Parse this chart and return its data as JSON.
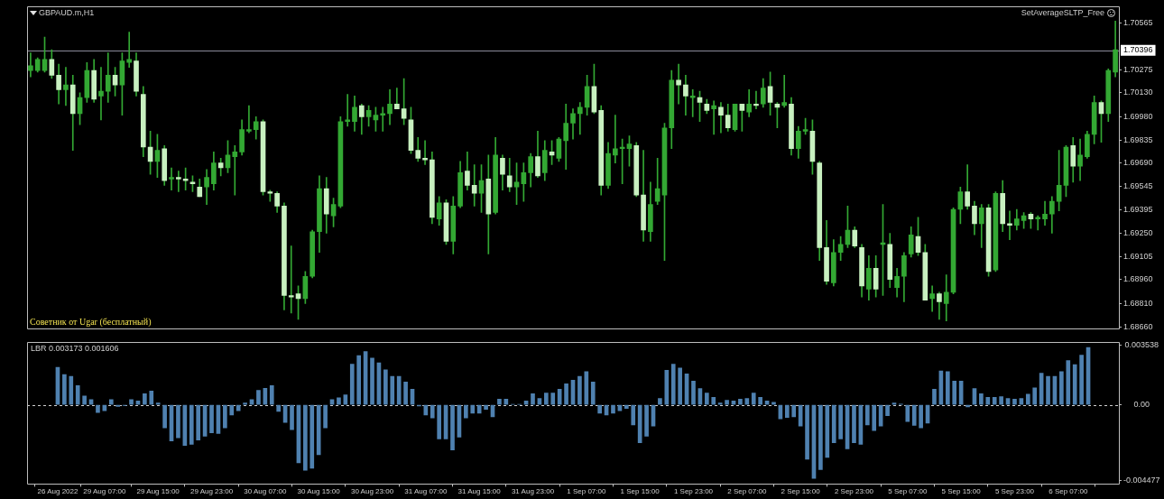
{
  "chart_data": [
    {
      "type": "candlestick",
      "title": "GBPAUD.m,H1",
      "annotations": [
        "Советник от Ugar (бесплатный)",
        "SetAverageSLTP_Free"
      ],
      "categories": [
        null,
        null,
        null,
        null,
        null,
        null,
        null,
        null,
        null,
        null,
        null,
        null,
        null,
        null,
        null,
        null,
        null,
        null,
        null,
        null,
        null,
        null,
        null,
        null,
        null,
        null,
        null,
        null,
        null,
        null,
        null,
        null,
        null,
        null,
        null,
        null,
        null,
        null,
        null,
        null,
        null,
        null,
        null,
        null,
        null,
        null,
        null,
        null,
        null,
        null,
        null,
        null,
        null,
        null,
        null,
        null,
        null,
        null,
        null,
        null,
        null,
        null,
        null,
        null,
        null,
        null,
        null,
        null,
        null,
        null,
        null,
        null,
        null,
        null,
        null,
        null,
        null,
        null,
        null,
        null,
        null,
        null,
        null,
        null,
        null,
        null,
        null,
        null,
        null,
        null,
        null,
        null,
        null,
        null,
        null,
        null,
        null,
        null,
        null,
        null,
        null,
        null,
        null,
        null,
        null,
        null,
        null,
        null,
        null,
        null,
        null,
        null,
        null,
        null,
        null,
        null,
        null,
        null,
        null,
        null,
        null,
        null,
        null,
        null,
        null,
        null,
        null,
        null,
        null,
        null,
        null,
        null,
        null,
        null,
        null,
        null,
        null,
        null,
        null,
        null,
        null,
        null,
        null,
        null,
        null,
        null,
        null,
        null,
        null,
        null,
        null,
        null,
        null,
        null,
        null
      ],
      "color": "#33a833",
      "colors": [
        "#33a833",
        "#33a833",
        "#33a833",
        "#c8f0c0",
        "#c8f0c0",
        "#33a833",
        "#c8f0c0",
        "#33a833",
        "#33a833",
        "#c8f0c0",
        "#33a833",
        "#33a833",
        "#c8f0c0",
        "#33a833",
        "#33a833",
        "#c8f0c0",
        "#c8f0c0",
        "#c8f0c0",
        "#33a833",
        "#c8f0c0",
        "#33a833",
        "#c8f0c0",
        "#c8f0c0",
        "#c8f0c0",
        "#c8f0c0",
        "#33a833",
        "#33a833",
        "#c8f0c0",
        "#33a833",
        "#33a833",
        "#33a833",
        "#33a833",
        "#33a833",
        "#c8f0c0",
        "#c8f0c0",
        "#c8f0c0",
        "#c8f0c0",
        "#c8f0c0",
        "#c8f0c0",
        "#33a833",
        "#33a833",
        "#33a833",
        "#c8f0c0",
        "#33a833",
        "#33a833",
        "#33a833",
        "#33a833",
        "#c8f0c0",
        "#33a833",
        "#33a833",
        "#33a833",
        "#33a833",
        "#c8f0c0",
        "#c8f0c0",
        "#c8f0c0",
        "#c8f0c0",
        "#c8f0c0",
        "#c8f0c0",
        "#33a833",
        "#c8f0c0",
        "#33a833",
        "#33a833",
        "#c8f0c0",
        "#c8f0c0",
        "#33a833",
        "#c8f0c0",
        "#33a833",
        "#c8f0c0",
        "#c8f0c0",
        "#33a833",
        "#33a833",
        "#33a833",
        "#c8f0c0",
        "#33a833",
        "#c8f0c0",
        "#33a833",
        "#33a833",
        "#33a833",
        "#33a833",
        "#33a833",
        "#c8f0c0",
        "#c8f0c0",
        "#33a833",
        "#33a833",
        "#33a833",
        "#33a833",
        "#c8f0c0",
        "#c8f0c0",
        "#33a833",
        "#33a833",
        "#33a833",
        "#33a833",
        "#c8f0c0",
        "#c8f0c0",
        "#33a833",
        "#c8f0c0",
        "#c8f0c0",
        "#33a833",
        "#c8f0c0",
        "#c8f0c0",
        "#33a833",
        "#c8f0c0",
        "#33a833",
        "#c8f0c0",
        "#33a833",
        "#c8f0c0",
        "#c8f0c0",
        "#33a833",
        "#c8f0c0",
        "#33a833",
        "#33a833",
        "#c8f0c0",
        "#c8f0c0",
        "#c8f0c0",
        "#33a833",
        "#33a833",
        "#33a833",
        "#c8f0c0",
        "#c8f0c0",
        "#33a833",
        "#c8f0c0",
        "#33a833",
        "#c8f0c0",
        "#33a833",
        "#33a833",
        "#33a833",
        "#c8f0c0",
        "#c8f0c0",
        "#33a833",
        "#c8f0c0",
        "#33a833",
        "#33a833",
        "#33a833",
        "#c8f0c0",
        "#c8f0c0",
        "#33a833",
        "#c8f0c0",
        "#33a833",
        "#c8f0c0",
        "#c8f0c0",
        "#33a833",
        "#33a833",
        "#c8f0c0",
        "#33a833",
        "#33a833",
        "#33a833",
        "#33a833",
        "#33a833",
        "#c8f0c0",
        "#33a833",
        "#33a833",
        "#33a833",
        "#c8f0c0",
        "#33a833",
        "#33a833"
      ],
      "ohlc": [
        [
          1.7027,
          1.7038,
          1.7023,
          1.703
        ],
        [
          1.7027,
          1.7035,
          1.7026,
          1.7034
        ],
        [
          1.7027,
          1.7048,
          1.7026,
          1.7034
        ],
        [
          1.7034,
          1.704,
          1.7022,
          1.7024
        ],
        [
          1.7024,
          1.7031,
          1.7006,
          1.7015
        ],
        [
          1.7015,
          1.7029,
          1.7005,
          1.7018
        ],
        [
          1.7018,
          1.7024,
          1.6977,
          1.7
        ],
        [
          1.7,
          1.7013,
          1.6993,
          1.701
        ],
        [
          1.701,
          1.7032,
          1.7007,
          1.7027
        ],
        [
          1.7027,
          1.7034,
          1.7007,
          1.7009
        ],
        [
          1.7011,
          1.7029,
          1.6996,
          1.7014
        ],
        [
          1.7014,
          1.7038,
          1.7007,
          1.7024
        ],
        [
          1.7024,
          1.7029,
          1.7011,
          1.7018
        ],
        [
          1.7018,
          1.7038,
          1.6999,
          1.7033
        ],
        [
          1.7032,
          1.7051,
          1.7029,
          1.7034
        ],
        [
          1.7033,
          1.7038,
          1.7011,
          1.7014
        ],
        [
          1.7012,
          1.7017,
          1.6973,
          1.6979
        ],
        [
          1.6979,
          1.6989,
          1.6962,
          1.697
        ],
        [
          1.697,
          1.6987,
          1.696,
          1.6977
        ],
        [
          1.6978,
          1.698,
          1.6955,
          1.6958
        ],
        [
          1.6959,
          1.6966,
          1.6952,
          1.696
        ],
        [
          1.696,
          1.6964,
          1.6951,
          1.6959
        ],
        [
          1.6959,
          1.6966,
          1.6952,
          1.6958
        ],
        [
          1.6957,
          1.6961,
          1.6951,
          1.6956
        ],
        [
          1.6954,
          1.6959,
          1.6948,
          1.6948
        ],
        [
          1.6954,
          1.6965,
          1.6943,
          1.696
        ],
        [
          1.6956,
          1.6976,
          1.6952,
          1.6969
        ],
        [
          1.6969,
          1.6972,
          1.6961,
          1.6966
        ],
        [
          1.6966,
          1.6983,
          1.6963,
          1.6974
        ],
        [
          1.6973,
          1.698,
          1.6949,
          1.6976
        ],
        [
          1.6976,
          1.6996,
          1.6974,
          1.699
        ],
        [
          1.6989,
          1.7005,
          1.6988,
          1.699
        ],
        [
          1.699,
          1.6998,
          1.6984,
          1.6995
        ],
        [
          1.6995,
          1.6996,
          1.6949,
          1.6951
        ],
        [
          1.6951,
          1.6952,
          1.6945,
          1.695
        ],
        [
          1.695,
          1.6951,
          1.6938,
          1.6942
        ],
        [
          1.6942,
          1.6944,
          1.6877,
          1.6886
        ],
        [
          1.6886,
          1.6917,
          1.6875,
          1.6885
        ],
        [
          1.6887,
          1.6892,
          1.6871,
          1.6884
        ],
        [
          1.6884,
          1.6901,
          1.6881,
          1.6898
        ],
        [
          1.6898,
          1.6927,
          1.6897,
          1.6926
        ],
        [
          1.6926,
          1.6961,
          1.6913,
          1.6953
        ],
        [
          1.6953,
          1.696,
          1.6925,
          1.6937
        ],
        [
          1.6936,
          1.6947,
          1.6929,
          1.6943
        ],
        [
          1.6942,
          1.6998,
          1.6941,
          1.6995
        ],
        [
          1.6995,
          1.7012,
          1.6992,
          1.6996
        ],
        [
          1.6995,
          1.7011,
          1.6989,
          1.7004
        ],
        [
          1.7005,
          1.7006,
          1.6987,
          1.6998
        ],
        [
          1.6998,
          1.7005,
          1.6992,
          1.7002
        ],
        [
          1.6996,
          1.7004,
          1.6989,
          1.6999
        ],
        [
          1.6999,
          1.7004,
          1.6989,
          1.7
        ],
        [
          1.7,
          1.7015,
          1.6993,
          1.7006
        ],
        [
          1.7006,
          1.7016,
          1.7003,
          1.7003
        ],
        [
          1.7003,
          1.7022,
          1.6993,
          1.6997
        ],
        [
          1.6996,
          1.7004,
          1.6975,
          1.6977
        ],
        [
          1.6977,
          1.6985,
          1.697,
          1.6972
        ],
        [
          1.6972,
          1.6983,
          1.6968,
          1.6971
        ],
        [
          1.6971,
          1.6976,
          1.6931,
          1.6935
        ],
        [
          1.6934,
          1.6948,
          1.693,
          1.6944
        ],
        [
          1.6944,
          1.6946,
          1.6918,
          1.692
        ],
        [
          1.692,
          1.6948,
          1.6912,
          1.6942
        ],
        [
          1.6942,
          1.697,
          1.6941,
          1.6963
        ],
        [
          1.6964,
          1.6976,
          1.6952,
          1.6955
        ],
        [
          1.6955,
          1.6968,
          1.6942,
          1.695
        ],
        [
          1.695,
          1.6968,
          1.6938,
          1.6958
        ],
        [
          1.6959,
          1.6974,
          1.6912,
          1.6937
        ],
        [
          1.6938,
          1.6985,
          1.6937,
          1.6974
        ],
        [
          1.6972,
          1.6974,
          1.6952,
          1.6962
        ],
        [
          1.6961,
          1.6972,
          1.6951,
          1.6954
        ],
        [
          1.6954,
          1.6969,
          1.6943,
          1.6957
        ],
        [
          1.6956,
          1.6969,
          1.6945,
          1.6963
        ],
        [
          1.6963,
          1.6975,
          1.6954,
          1.6973
        ],
        [
          1.6973,
          1.6989,
          1.696,
          1.6961
        ],
        [
          1.6963,
          1.6983,
          1.6958,
          1.6977
        ],
        [
          1.6976,
          1.6983,
          1.6968,
          1.6974
        ],
        [
          1.6972,
          1.6985,
          1.697,
          1.6984
        ],
        [
          1.6983,
          1.7006,
          1.6965,
          1.6994
        ],
        [
          1.6994,
          1.7003,
          1.6984,
          1.7
        ],
        [
          1.7,
          1.7007,
          1.6987,
          1.7004
        ],
        [
          1.7004,
          1.7024,
          1.6999,
          1.7017
        ],
        [
          1.7017,
          1.7031,
          1.7,
          1.7001
        ],
        [
          1.7002,
          1.7005,
          1.6949,
          1.6955
        ],
        [
          1.6955,
          1.6982,
          1.6953,
          1.6975
        ],
        [
          1.6974,
          1.6999,
          1.6969,
          1.6978
        ],
        [
          1.6978,
          1.6984,
          1.6956,
          1.6979
        ],
        [
          1.6978,
          1.6986,
          1.6967,
          1.6981
        ],
        [
          1.698,
          1.6982,
          1.6948,
          1.6949
        ],
        [
          1.6949,
          1.6977,
          1.692,
          1.6927
        ],
        [
          1.6926,
          1.6957,
          1.692,
          1.6943
        ],
        [
          1.6945,
          1.6972,
          1.6943,
          1.6953
        ],
        [
          1.6949,
          1.6994,
          1.6908,
          1.6991
        ],
        [
          1.6991,
          1.7027,
          1.6978,
          1.7021
        ],
        [
          1.7021,
          1.7031,
          1.7006,
          1.7018
        ],
        [
          1.7018,
          1.7024,
          1.6999,
          1.7011
        ],
        [
          1.701,
          1.7015,
          1.6998,
          1.7011
        ],
        [
          1.701,
          1.7014,
          1.6995,
          1.7007
        ],
        [
          1.7006,
          1.7009,
          1.7,
          1.7002
        ],
        [
          1.7003,
          1.7008,
          1.6987,
          1.7005
        ],
        [
          1.7004,
          1.7007,
          1.6988,
          1.6999
        ],
        [
          1.6999,
          1.7006,
          1.6989,
          1.6991
        ],
        [
          1.699,
          1.7006,
          1.6989,
          1.7006
        ],
        [
          1.7006,
          1.7006,
          1.6989,
          1.7002
        ],
        [
          1.7001,
          1.7015,
          1.6998,
          1.7006
        ],
        [
          1.7006,
          1.7014,
          1.7003,
          1.7005
        ],
        [
          1.7006,
          1.7022,
          1.7004,
          1.7016
        ],
        [
          1.7017,
          1.7026,
          1.6999,
          1.7007
        ],
        [
          1.7006,
          1.7007,
          1.6991,
          1.7004
        ],
        [
          1.7005,
          1.7024,
          1.7004,
          1.7007
        ],
        [
          1.7006,
          1.701,
          1.6974,
          1.6978
        ],
        [
          1.6978,
          1.6992,
          1.6972,
          1.6989
        ],
        [
          1.6989,
          1.6997,
          1.6987,
          1.699
        ],
        [
          1.6989,
          1.6996,
          1.6962,
          1.697
        ],
        [
          1.6969,
          1.697,
          1.6908,
          1.6916
        ],
        [
          1.6916,
          1.6933,
          1.6893,
          1.6895
        ],
        [
          1.6894,
          1.6921,
          1.6892,
          1.6913
        ],
        [
          1.6913,
          1.6923,
          1.6908,
          1.6918
        ],
        [
          1.6918,
          1.6942,
          1.6916,
          1.6927
        ],
        [
          1.6927,
          1.6929,
          1.6916,
          1.6917
        ],
        [
          1.6916,
          1.6918,
          1.6885,
          1.6892
        ],
        [
          1.689,
          1.6911,
          1.6883,
          1.6903
        ],
        [
          1.6903,
          1.6911,
          1.6885,
          1.689
        ],
        [
          1.6918,
          1.6943,
          1.6886,
          1.6919
        ],
        [
          1.6918,
          1.6925,
          1.6891,
          1.6896
        ],
        [
          1.6891,
          1.6903,
          1.6885,
          1.6898
        ],
        [
          1.6898,
          1.6913,
          1.6882,
          1.6911
        ],
        [
          1.6912,
          1.6929,
          1.691,
          1.6924
        ],
        [
          1.6923,
          1.6935,
          1.6911,
          1.6913
        ],
        [
          1.6913,
          1.6918,
          1.6883,
          1.6883
        ],
        [
          1.6884,
          1.6892,
          1.6876,
          1.6887
        ],
        [
          1.6887,
          1.6888,
          1.6871,
          1.6882
        ],
        [
          1.6881,
          1.6899,
          1.687,
          1.6888
        ],
        [
          1.6888,
          1.6941,
          1.6887,
          1.694
        ],
        [
          1.694,
          1.6954,
          1.6931,
          1.6951
        ],
        [
          1.6951,
          1.6968,
          1.694,
          1.6942
        ],
        [
          1.6942,
          1.6945,
          1.6924,
          1.6931
        ],
        [
          1.6931,
          1.6943,
          1.6916,
          1.6941
        ],
        [
          1.6941,
          1.6943,
          1.6898,
          1.6901
        ],
        [
          1.6902,
          1.6951,
          1.6901,
          1.695
        ],
        [
          1.695,
          1.6958,
          1.6926,
          1.6931
        ],
        [
          1.6931,
          1.6939,
          1.6921,
          1.693
        ],
        [
          1.693,
          1.694,
          1.6927,
          1.6934
        ],
        [
          1.6933,
          1.6938,
          1.6928,
          1.6936
        ],
        [
          1.6937,
          1.6938,
          1.6928,
          1.6934
        ],
        [
          1.6934,
          1.6936,
          1.6927,
          1.6935
        ],
        [
          1.6934,
          1.6945,
          1.693,
          1.6937
        ],
        [
          1.6937,
          1.6948,
          1.6925,
          1.6945
        ],
        [
          1.6945,
          1.6977,
          1.6939,
          1.6955
        ],
        [
          1.6955,
          1.698,
          1.6948,
          1.6979
        ],
        [
          1.698,
          1.6985,
          1.6957,
          1.6967
        ],
        [
          1.6967,
          1.6984,
          1.6958,
          1.6974
        ],
        [
          1.6973,
          1.6989,
          1.6972,
          1.6987
        ],
        [
          1.6987,
          1.7011,
          1.6981,
          1.7007
        ],
        [
          1.7007,
          1.7008,
          1.6982,
          1.7
        ],
        [
          1.7,
          1.7028,
          1.6995,
          1.7027
        ],
        [
          1.7026,
          1.7058,
          1.7023,
          1.704
        ]
      ],
      "ylim": [
        1.6865,
        1.7067
      ],
      "yticks": [
        1.70565,
        1.70275,
        {
          "value": 1.7013,
          "label": "1.70130"
        },
        {
          "value": 1.6998,
          "label": "1.69980"
        },
        1.69835,
        {
          "value": 1.6969,
          "label": "1.69690"
        },
        1.69545,
        1.69395,
        {
          "value": 1.6925,
          "label": "1.69250"
        },
        1.69105,
        {
          "value": 1.6896,
          "label": "1.68960"
        },
        {
          "value": 1.6881,
          "label": "1.68810"
        },
        {
          "value": 1.6866,
          "label": "1.68660"
        }
      ],
      "ref_lines": [
        {
          "axis": "y",
          "value": 1.70396,
          "label": "1.70396",
          "color": "#8a8a9a"
        }
      ],
      "tick_labels": "y"
    },
    {
      "type": "bar",
      "title": "LBR 0.003173 0.001606",
      "categories": [
        "26 Aug 2022",
        null,
        null,
        null,
        null,
        null,
        null,
        "29 Aug 07:00",
        null,
        null,
        null,
        null,
        null,
        null,
        null,
        "29 Aug 15:00",
        null,
        null,
        null,
        null,
        null,
        null,
        null,
        "29 Aug 23:00",
        null,
        null,
        null,
        null,
        null,
        null,
        null,
        "30 Aug 07:00",
        null,
        null,
        null,
        null,
        null,
        null,
        null,
        "30 Aug 15:00",
        null,
        null,
        null,
        null,
        null,
        null,
        null,
        "30 Aug 23:00",
        null,
        null,
        null,
        null,
        null,
        null,
        null,
        "31 Aug 07:00",
        null,
        null,
        null,
        null,
        null,
        null,
        null,
        "31 Aug 15:00",
        null,
        null,
        null,
        null,
        null,
        null,
        null,
        "31 Aug 23:00",
        null,
        null,
        null,
        null,
        null,
        null,
        null,
        "1 Sep 07:00",
        null,
        null,
        null,
        null,
        null,
        null,
        null,
        "1 Sep 15:00",
        null,
        null,
        null,
        null,
        null,
        null,
        null,
        "1 Sep 23:00",
        null,
        null,
        null,
        null,
        null,
        null,
        null,
        "2 Sep 07:00",
        null,
        null,
        null,
        null,
        null,
        null,
        null,
        "2 Sep 15:00",
        null,
        null,
        null,
        null,
        null,
        null,
        null,
        "2 Sep 23:00",
        null,
        null,
        null,
        null,
        null,
        null,
        null,
        "5 Sep 07:00",
        null,
        null,
        null,
        null,
        null,
        null,
        null,
        "5 Sep 15:00",
        null,
        null,
        null,
        null,
        null,
        null,
        null,
        "5 Sep 23:00",
        null,
        null,
        null,
        null,
        null,
        null,
        null,
        "6 Sep 07:00",
        null,
        null,
        null
      ],
      "color": "#4f81b0",
      "values": [
        0.00222,
        0.00179,
        0.00168,
        0.00113,
        0.00052,
        0.00031,
        -0.00046,
        -0.00035,
        0.00031,
        -0.0001,
        -4e-05,
        0.00031,
        0.00022,
        0.00065,
        0.00081,
        0.0001,
        -0.00137,
        -0.00214,
        -0.00196,
        -0.00242,
        -0.00235,
        -0.00209,
        -0.00187,
        -0.00166,
        -0.0017,
        -0.00137,
        -0.00061,
        -0.00035,
        0.0001,
        0.00031,
        0.00085,
        0.00098,
        0.00113,
        -0.00039,
        -0.00105,
        -0.00148,
        -0.00344,
        -0.00388,
        -0.00377,
        -0.00296,
        -0.00137,
        0.00031,
        0.00041,
        0.00059,
        0.0024,
        0.00292,
        0.00316,
        0.00277,
        0.00249,
        0.00207,
        0.00168,
        0.00168,
        0.00135,
        0.00092,
        -7e-05,
        -0.00061,
        -0.00078,
        -0.00203,
        -0.00203,
        -0.00268,
        -0.00192,
        -0.00078,
        -0.0005,
        -0.0005,
        -0.00028,
        -0.00072,
        0.00033,
        0.00033,
        2e-05,
        2e-05,
        0.00022,
        0.00065,
        0.00037,
        0.0007,
        0.0007,
        0.00092,
        0.00124,
        0.00146,
        0.00168,
        0.00196,
        0.00135,
        -0.0005,
        -0.00061,
        -0.0005,
        -0.00035,
        -0.00022,
        -0.0012,
        -0.00225,
        -0.00187,
        -0.00126,
        0.00037,
        0.00205,
        0.0024,
        0.00218,
        0.00183,
        0.0014,
        0.00096,
        0.0007,
        0.00044,
        0.0001,
        0.00026,
        0.00022,
        0.00033,
        0.00037,
        0.0007,
        0.00044,
        0.00022,
        0.00015,
        -0.00083,
        -0.00076,
        -0.00072,
        -0.00126,
        -0.00323,
        -0.00436,
        -0.00384,
        -0.00312,
        -0.00225,
        -0.00203,
        -0.00262,
        -0.00225,
        -0.00235,
        -0.0012,
        -0.00153,
        -0.00126,
        -0.00065,
        0.00011,
        4e-05,
        -0.001,
        -0.00122,
        -0.00137,
        -0.00109,
        0.00092,
        0.00201,
        0.00196,
        0.0014,
        0.0014,
        -0.00013,
        0.00096,
        0.00065,
        0.00044,
        0.00044,
        0.00048,
        0.00037,
        0.00033,
        0.00037,
        0.00063,
        0.001,
        0.00187,
        0.00168,
        0.00168,
        0.00196,
        0.00262,
        0.00238,
        0.00294,
        0.0034
      ],
      "ylim": [
        -0.0047,
        0.0037
      ],
      "yticks": [
        0.003538,
        {
          "value": 0,
          "label": "0.00"
        },
        -0.004477
      ],
      "ref_lines": [
        {
          "axis": "y",
          "value": 0,
          "color": "#d0d0d0",
          "line_style": "dashed"
        }
      ]
    }
  ]
}
